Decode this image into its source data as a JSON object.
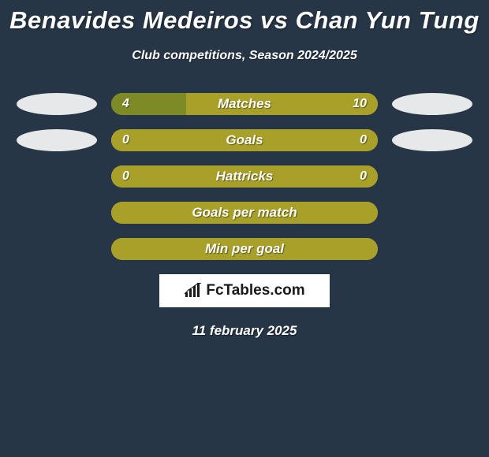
{
  "colors": {
    "background": "#263646",
    "left_fill": "#7e8a26",
    "right_fill": "#a8a029",
    "empty_fill": "#a8a029",
    "avatar": "#e7e8e9",
    "text": "#ffffff",
    "brand_bg": "#ffffff",
    "brand_text": "#1a1a1a"
  },
  "header": {
    "title": "Benavides Medeiros vs Chan Yun Tung",
    "subtitle": "Club competitions, Season 2024/2025"
  },
  "stats": [
    {
      "label": "Matches",
      "left_value": "4",
      "right_value": "10",
      "left_pct": 28,
      "show_left_avatar": true,
      "show_right_avatar": true
    },
    {
      "label": "Goals",
      "left_value": "0",
      "right_value": "0",
      "left_pct": 0,
      "show_left_avatar": true,
      "show_right_avatar": true
    },
    {
      "label": "Hattricks",
      "left_value": "0",
      "right_value": "0",
      "left_pct": 0,
      "show_left_avatar": false,
      "show_right_avatar": false
    },
    {
      "label": "Goals per match",
      "left_value": "",
      "right_value": "",
      "left_pct": 0,
      "show_left_avatar": false,
      "show_right_avatar": false
    },
    {
      "label": "Min per goal",
      "left_value": "",
      "right_value": "",
      "left_pct": 0,
      "show_left_avatar": false,
      "show_right_avatar": false
    }
  ],
  "brand": {
    "text": "FcTables.com"
  },
  "date": "11 february 2025",
  "typography": {
    "title_size": 31,
    "subtitle_size": 16,
    "bar_label_size": 17,
    "bar_value_size": 16,
    "brand_size": 19,
    "date_size": 17
  }
}
